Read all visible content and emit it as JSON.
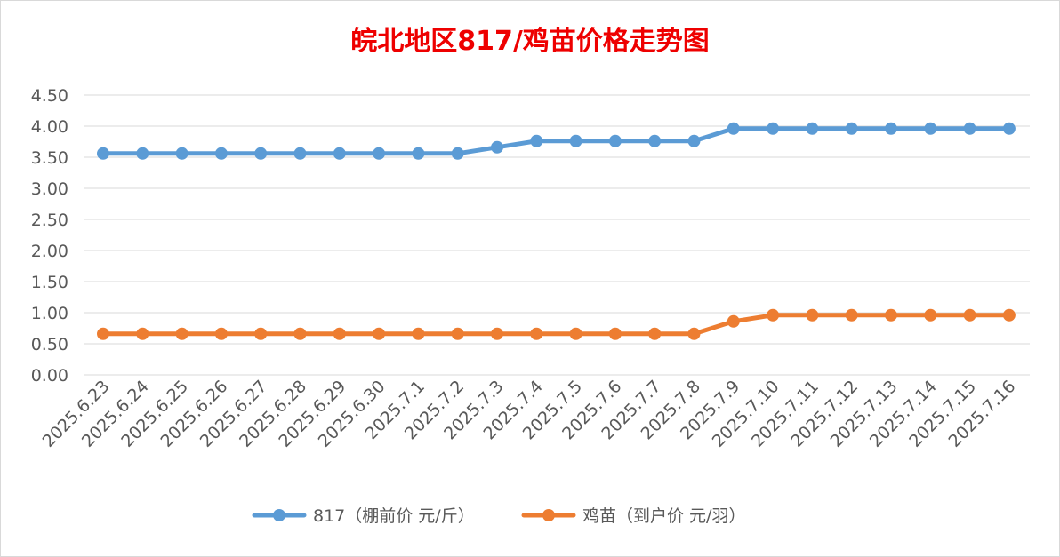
{
  "chart_data": {
    "type": "line",
    "title": "皖北地区817/鸡苗价格走势图",
    "categories": [
      "2025.6.23",
      "2025.6.24",
      "2025.6.25",
      "2025.6.26",
      "2025.6.27",
      "2025.6.28",
      "2025.6.29",
      "2025.6.30",
      "2025.7.1",
      "2025.7.2",
      "2025.7.3",
      "2025.7.4",
      "2025.7.5",
      "2025.7.6",
      "2025.7.7",
      "2025.7.8",
      "2025.7.9",
      "2025.7.10",
      "2025.7.11",
      "2025.7.12",
      "2025.7.13",
      "2025.7.14",
      "2025.7.15",
      "2025.7.16"
    ],
    "series": [
      {
        "name": "817（棚前价 元/斤）",
        "color": "#5b9bd5",
        "values": [
          3.56,
          3.56,
          3.56,
          3.56,
          3.56,
          3.56,
          3.56,
          3.56,
          3.56,
          3.56,
          3.66,
          3.76,
          3.76,
          3.76,
          3.76,
          3.76,
          3.96,
          3.96,
          3.96,
          3.96,
          3.96,
          3.96,
          3.96,
          3.96
        ]
      },
      {
        "name": "鸡苗（到户价 元/羽）",
        "color": "#ed7d31",
        "values": [
          0.66,
          0.66,
          0.66,
          0.66,
          0.66,
          0.66,
          0.66,
          0.66,
          0.66,
          0.66,
          0.66,
          0.66,
          0.66,
          0.66,
          0.66,
          0.66,
          0.86,
          0.96,
          0.96,
          0.96,
          0.96,
          0.96,
          0.96,
          0.96
        ]
      }
    ],
    "yticks": [
      "0.00",
      "0.50",
      "1.00",
      "1.50",
      "2.00",
      "2.50",
      "3.00",
      "3.50",
      "4.00",
      "4.50"
    ],
    "ylim": [
      0,
      4.5
    ],
    "grid": true,
    "legend_position": "bottom",
    "xlabel": "",
    "ylabel": ""
  }
}
